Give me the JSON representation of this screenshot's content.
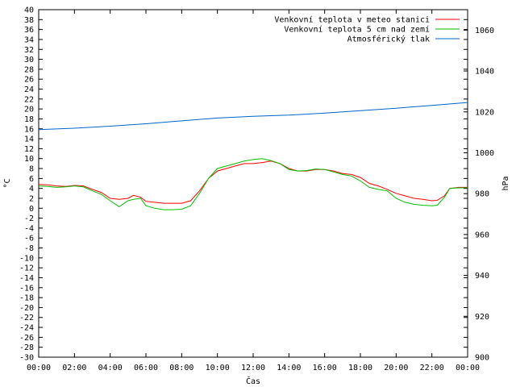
{
  "chart_data": {
    "type": "line",
    "xlabel": "Čas",
    "ylabel": "°C",
    "y2label": "hPa",
    "x_unit": "hours",
    "xlim": [
      0,
      24
    ],
    "ylim": [
      -30,
      40
    ],
    "y2lim": [
      900,
      1070
    ],
    "x_ticks": [
      0,
      2,
      4,
      6,
      8,
      10,
      12,
      14,
      16,
      18,
      20,
      22,
      24
    ],
    "x_tick_labels": [
      "00:00",
      "02:00",
      "04:00",
      "06:00",
      "08:00",
      "10:00",
      "12:00",
      "14:00",
      "16:00",
      "18:00",
      "20:00",
      "22:00",
      "00:00"
    ],
    "y_ticks": [
      -30,
      -28,
      -26,
      -24,
      -22,
      -20,
      -18,
      -16,
      -14,
      -12,
      -10,
      -8,
      -6,
      -4,
      -2,
      0,
      2,
      4,
      6,
      8,
      10,
      12,
      14,
      16,
      18,
      20,
      22,
      24,
      26,
      28,
      30,
      32,
      34,
      36,
      38,
      40
    ],
    "y2_ticks": [
      900,
      920,
      940,
      960,
      980,
      1000,
      1020,
      1040,
      1060
    ],
    "grid": false,
    "legend_position": "top-right",
    "series": [
      {
        "name": "Venkovní teplota v meteo stanici",
        "color": "#ff0000",
        "axis": "left",
        "x": [
          0,
          0.5,
          1,
          1.5,
          2,
          2.5,
          3,
          3.5,
          4,
          4.5,
          5,
          5.3,
          5.7,
          6,
          6.5,
          7,
          7.5,
          8,
          8.5,
          9,
          9.5,
          10,
          10.5,
          11,
          11.5,
          12,
          12.5,
          13,
          13.5,
          14,
          14.5,
          15,
          15.5,
          16,
          16.5,
          17,
          17.5,
          18,
          18.5,
          19,
          19.5,
          20,
          20.5,
          21,
          21.5,
          22,
          22.3,
          22.7,
          23,
          23.5,
          24
        ],
        "y": [
          4.8,
          4.7,
          4.5,
          4.4,
          4.6,
          4.5,
          3.8,
          3.2,
          2.0,
          1.8,
          2.0,
          2.6,
          2.2,
          1.4,
          1.2,
          1.0,
          1.0,
          1.0,
          1.5,
          3.5,
          6.0,
          7.5,
          8.0,
          8.5,
          9.0,
          9.0,
          9.2,
          9.5,
          9.0,
          8.0,
          7.5,
          7.5,
          7.8,
          7.8,
          7.5,
          7.0,
          6.8,
          6.2,
          5.0,
          4.5,
          3.8,
          3.0,
          2.5,
          2.0,
          1.8,
          1.5,
          1.6,
          2.5,
          4.0,
          4.2,
          4.2
        ]
      },
      {
        "name": "Venkovní teplota 5 cm nad zemí",
        "color": "#00c000",
        "axis": "left",
        "x": [
          0,
          0.5,
          1,
          1.5,
          2,
          2.5,
          3,
          3.5,
          4,
          4.5,
          5,
          5.3,
          5.7,
          6,
          6.5,
          7,
          7.5,
          8,
          8.5,
          9,
          9.5,
          10,
          10.5,
          11,
          11.5,
          12,
          12.5,
          13,
          13.5,
          14,
          14.5,
          15,
          15.5,
          16,
          16.5,
          17,
          17.5,
          18,
          18.5,
          19,
          19.5,
          20,
          20.5,
          21,
          21.5,
          22,
          22.3,
          22.7,
          23,
          23.5,
          24
        ],
        "y": [
          4.5,
          4.4,
          4.2,
          4.3,
          4.5,
          4.3,
          3.5,
          2.8,
          1.5,
          0.3,
          1.5,
          1.8,
          2.0,
          0.5,
          0.0,
          -0.3,
          -0.3,
          -0.2,
          0.5,
          3.0,
          6.0,
          8.0,
          8.5,
          9.0,
          9.5,
          9.8,
          10.0,
          9.6,
          9.0,
          7.8,
          7.5,
          7.6,
          7.9,
          7.8,
          7.3,
          6.8,
          6.5,
          5.5,
          4.2,
          3.8,
          3.5,
          2.0,
          1.2,
          0.8,
          0.6,
          0.5,
          0.6,
          2.2,
          4.0,
          4.1,
          4.1
        ]
      },
      {
        "name": "Atmosférický tlak",
        "color": "#0066cc",
        "axis": "right",
        "x": [
          0,
          2,
          4,
          6,
          8,
          10,
          12,
          14,
          16,
          18,
          20,
          22,
          24
        ],
        "y": [
          1011.3,
          1012.0,
          1013.0,
          1014.2,
          1015.6,
          1017.0,
          1017.8,
          1018.4,
          1019.4,
          1020.6,
          1021.8,
          1023.2,
          1024.6
        ]
      }
    ]
  }
}
